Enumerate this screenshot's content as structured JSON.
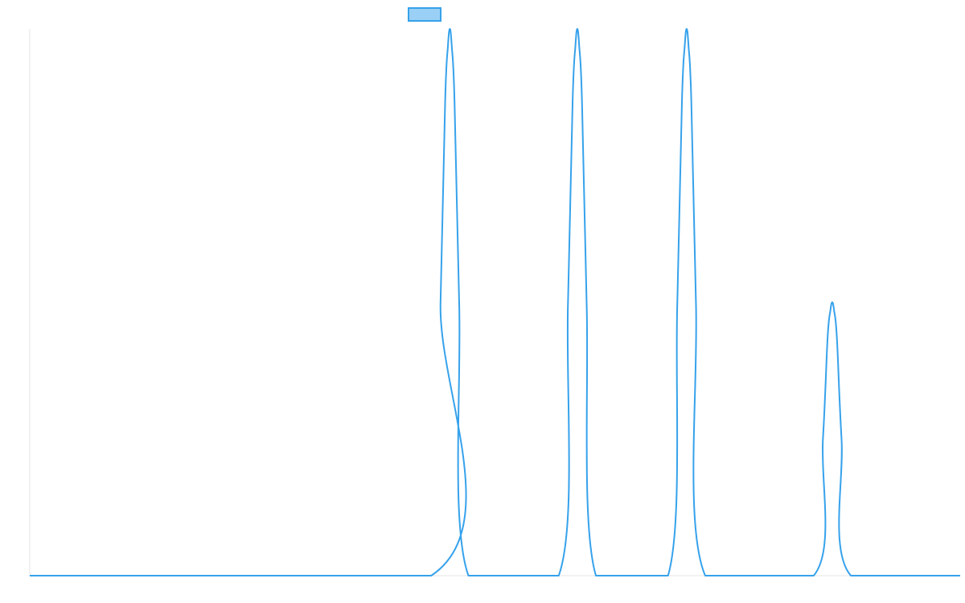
{
  "chart_data": {
    "type": "line",
    "title": "",
    "xlabel": "",
    "ylabel": "",
    "xlim": [
      0,
      1
    ],
    "ylim": [
      0,
      1
    ],
    "grid": false,
    "legend": "top-center",
    "colors": {
      "line": "#36a2eb",
      "legend_fill": "#9ad0f5",
      "axis": "#e6e6e6"
    },
    "series": [
      {
        "name": "",
        "x": [
          0.0,
          0.4315,
          0.4415,
          0.4465,
          0.4495,
          0.4515,
          0.4535,
          0.4565,
          0.4615,
          0.4715,
          0.5685,
          0.5785,
          0.5835,
          0.5865,
          0.5885,
          0.5905,
          0.5935,
          0.5985,
          0.6085,
          0.686,
          0.696,
          0.701,
          0.704,
          0.706,
          0.708,
          0.711,
          0.716,
          0.726,
          0.8425,
          0.8525,
          0.8575,
          0.8605,
          0.8625,
          0.8645,
          0.8675,
          0.8725,
          0.8825,
          1.0
        ],
        "y": [
          0.0,
          0.0,
          0.5,
          0.87,
          0.97,
          1.0,
          0.97,
          0.87,
          0.5,
          0.0,
          0.0,
          0.5,
          0.87,
          0.97,
          1.0,
          0.97,
          0.87,
          0.5,
          0.0,
          0.0,
          0.5,
          0.87,
          0.97,
          1.0,
          0.97,
          0.87,
          0.5,
          0.0,
          0.0,
          0.25,
          0.435,
          0.485,
          0.5,
          0.485,
          0.435,
          0.25,
          0.0,
          0.0
        ]
      }
    ]
  }
}
